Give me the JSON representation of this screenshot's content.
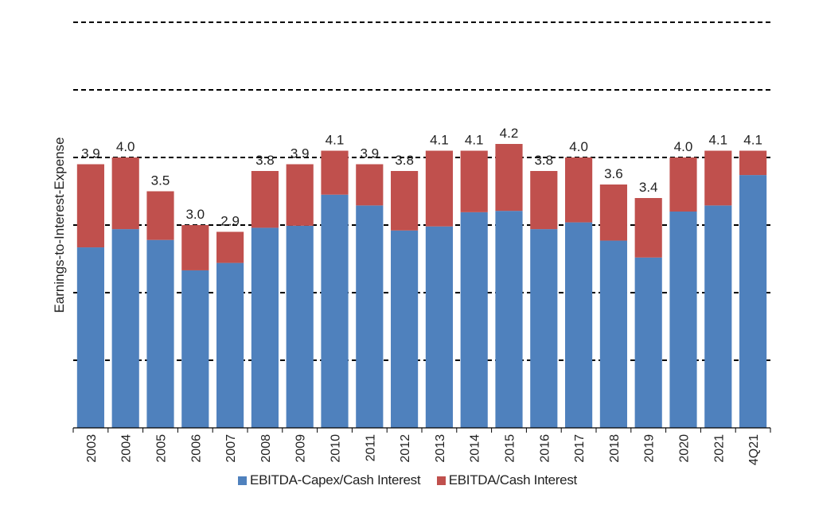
{
  "chart_data": {
    "type": "bar",
    "stacked": true,
    "ylabel": "Earnings-to-Interest-Expense",
    "categories": [
      "2003",
      "2004",
      "2005",
      "2006",
      "2007",
      "2008",
      "2009",
      "2010",
      "2011",
      "2012",
      "2013",
      "2014",
      "2015",
      "2016",
      "2017",
      "2018",
      "2019",
      "2020",
      "2021",
      "4Q21"
    ],
    "series": [
      {
        "name": "EBITDA-Capex/Cash Interest",
        "color": "#4F81BD",
        "values": [
          2.67,
          2.94,
          2.78,
          2.33,
          2.44,
          2.96,
          2.99,
          3.45,
          3.29,
          2.92,
          2.98,
          3.19,
          3.21,
          2.94,
          3.04,
          2.77,
          2.52,
          3.2,
          3.29,
          3.74
        ]
      },
      {
        "name": "EBITDA/Cash Interest",
        "color": "#C0504D",
        "values": [
          1.23,
          1.06,
          0.72,
          0.67,
          0.46,
          0.84,
          0.91,
          0.65,
          0.61,
          0.88,
          1.12,
          0.91,
          0.99,
          0.86,
          0.96,
          0.83,
          0.88,
          0.8,
          0.81,
          0.36
        ]
      }
    ],
    "totals": [
      3.9,
      4.0,
      3.5,
      3.0,
      2.9,
      3.8,
      3.9,
      4.1,
      3.9,
      3.8,
      4.1,
      4.1,
      4.2,
      3.8,
      4.0,
      3.6,
      3.4,
      4.0,
      4.1,
      4.1
    ],
    "total_labels": [
      "3.9",
      "4.0",
      "3.5",
      "3.0",
      "2.9",
      "3.8",
      "3.9",
      "4.1",
      "3.9",
      "3.8",
      "4.1",
      "4.1",
      "4.2",
      "3.8",
      "4.0",
      "3.6",
      "3.4",
      "4.0",
      "4.1",
      "4.1"
    ],
    "ylim": [
      0,
      6
    ],
    "grid": "dashed-horizontal",
    "legend_position": "bottom"
  }
}
